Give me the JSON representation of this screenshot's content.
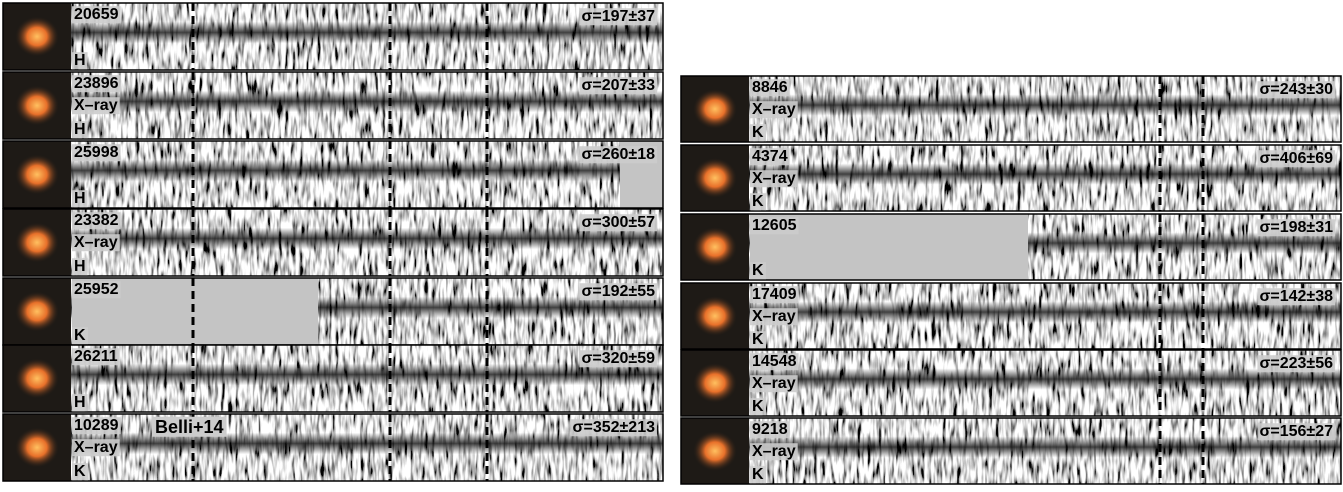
{
  "left": [
    {
      "id": "20659",
      "band": "H",
      "sigma": "σ=197±37"
    },
    {
      "id": "23896",
      "xray": "X–ray",
      "band": "H",
      "sigma": "σ=207±33"
    },
    {
      "id": "25998",
      "band": "H",
      "sigma": "σ=260±18"
    },
    {
      "id": "23382",
      "xray": "X–ray",
      "band": "H",
      "sigma": "σ=300±57"
    },
    {
      "id": "25952",
      "band": "K",
      "sigma": "σ=192±55"
    },
    {
      "id": "26211",
      "band": "H",
      "sigma": "σ=320±59"
    },
    {
      "id": "10289",
      "xray": "X–ray",
      "band": "K",
      "sigma": "σ=352±213",
      "note": "Belli+14"
    }
  ],
  "right": [
    {
      "id": "8846",
      "xray": "X–ray",
      "band": "K",
      "sigma": "σ=243±30"
    },
    {
      "id": "4374",
      "xray": "X–ray",
      "band": "K",
      "sigma": "σ=406±69"
    },
    {
      "id": "12605",
      "band": "K",
      "sigma": "σ=198±31"
    },
    {
      "id": "17409",
      "xray": "X–ray",
      "band": "K",
      "sigma": "σ=142±38"
    },
    {
      "id": "14548",
      "xray": "X–ray",
      "band": "K",
      "sigma": "σ=223±56"
    },
    {
      "id": "9218",
      "xray": "X–ray",
      "band": "K",
      "sigma": "σ=156±27"
    }
  ]
}
